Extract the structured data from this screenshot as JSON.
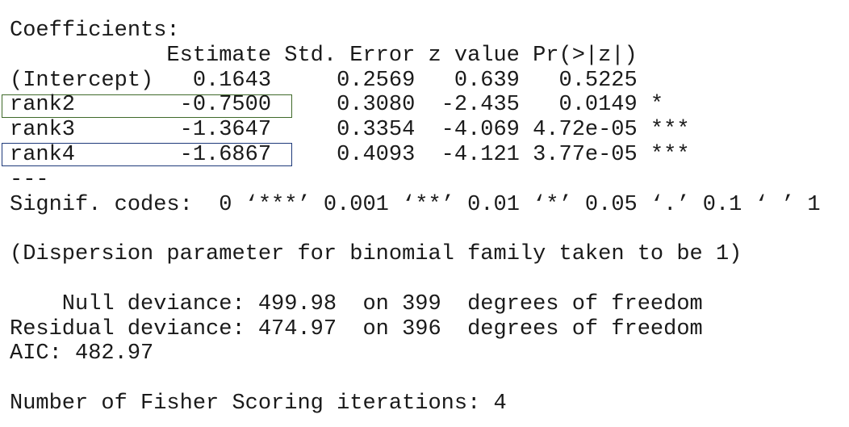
{
  "header": {
    "title": "Coefficients:"
  },
  "table": {
    "columns": [
      "Estimate",
      "Std. Error",
      "z value",
      "Pr(>|z|)"
    ],
    "rows": [
      [
        "(Intercept)",
        "0.1643",
        "0.2569",
        "0.639",
        "0.5225",
        ""
      ],
      [
        "rank2",
        "-0.7500",
        "0.3080",
        "-2.435",
        "0.0149",
        "*"
      ],
      [
        "rank3",
        "-1.3647",
        "0.3354",
        "-4.069",
        "4.72e-05",
        "***"
      ],
      [
        "rank4",
        "-1.6867",
        "0.4093",
        "-4.121",
        "3.77e-05",
        "***"
      ]
    ]
  },
  "separator": "---",
  "signif_codes": "Signif. codes:  0 ‘***’ 0.001 ‘**’ 0.01 ‘*’ 0.05 ‘.’ 0.1 ‘ ’ 1",
  "dispersion": "(Dispersion parameter for binomial family taken to be 1)",
  "null_deviance": "Null deviance: 499.98  on 399  degrees of freedom",
  "residual_deviance": "Residual deviance: 474.97  on 396  degrees of freedom",
  "aic": "AIC: 482.97",
  "fisher": "Number of Fisher Scoring iterations: 4"
}
